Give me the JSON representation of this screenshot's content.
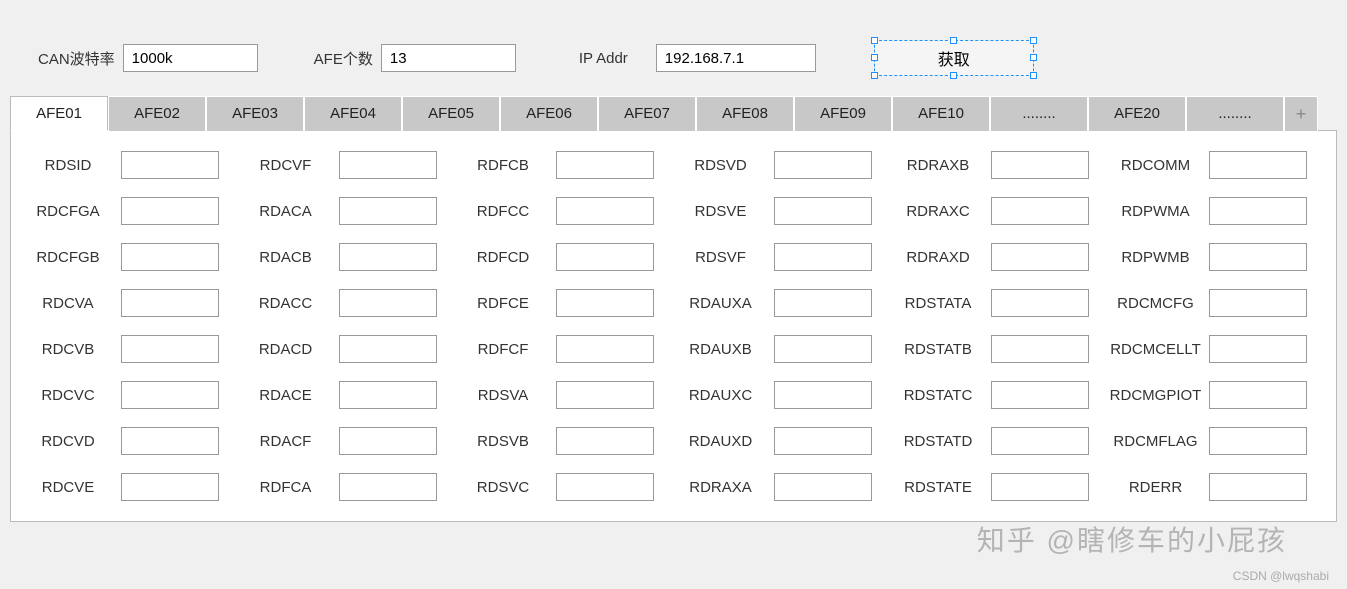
{
  "topbar": {
    "can_label": "CAN波特率",
    "can_value": "1000k",
    "afe_label": "AFE个数",
    "afe_value": "13",
    "ip_label": "IP Addr",
    "ip_value": "192.168.7.1",
    "fetch_label": "获取"
  },
  "tabs": [
    "AFE01",
    "AFE02",
    "AFE03",
    "AFE04",
    "AFE05",
    "AFE06",
    "AFE07",
    "AFE08",
    "AFE09",
    "AFE10",
    "........",
    "AFE20",
    "........"
  ],
  "plus": "+",
  "columns": {
    "c0": [
      "RDSID",
      "RDCFGA",
      "RDCFGB",
      "RDCVA",
      "RDCVB",
      "RDCVC",
      "RDCVD",
      "RDCVE"
    ],
    "c1": [
      "RDCVF",
      "RDACA",
      "RDACB",
      "RDACC",
      "RDACD",
      "RDACE",
      "RDACF",
      "RDFCA"
    ],
    "c2": [
      "RDFCB",
      "RDFCC",
      "RDFCD",
      "RDFCE",
      "RDFCF",
      "RDSVA",
      "RDSVB",
      "RDSVC"
    ],
    "c3": [
      "RDSVD",
      "RDSVE",
      "RDSVF",
      "RDAUXA",
      "RDAUXB",
      "RDAUXC",
      "RDAUXD",
      "RDRAXA"
    ],
    "c4": [
      "RDRAXB",
      "RDRAXC",
      "RDRAXD",
      "RDSTATA",
      "RDSTATB",
      "RDSTATC",
      "RDSTATD",
      "RDSTATE"
    ],
    "c5": [
      "RDCOMM",
      "RDPWMA",
      "RDPWMB",
      "RDCMCFG",
      "RDCMCELLT",
      "RDCMGPIOT",
      "RDCMFLAG",
      "RDERR"
    ]
  },
  "watermark1": "知乎 @瞎修车的小屁孩",
  "watermark2": "CSDN @lwqshabi"
}
